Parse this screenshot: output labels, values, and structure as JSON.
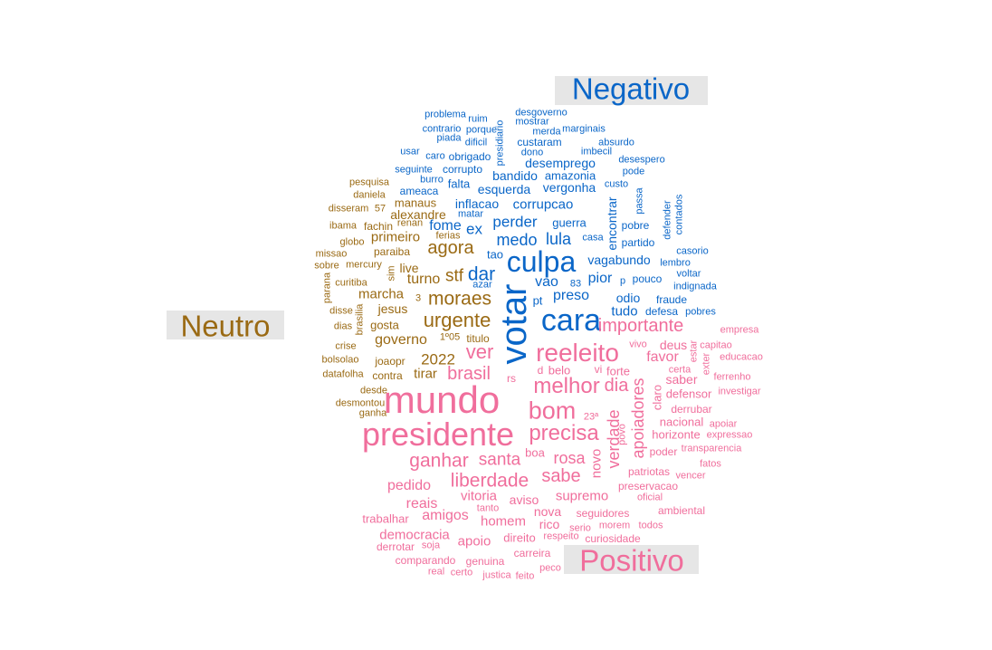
{
  "chart_data": {
    "type": "wordcloud",
    "title": "",
    "legend_labels": {
      "negativo": "Negativo",
      "neutro": "Neutro",
      "positivo": "Positivo"
    },
    "colors": {
      "negativo": "#0a66c8",
      "neutro": "#9a6a14",
      "positivo": "#f06e9c"
    },
    "words": [
      {
        "text": "problema",
        "group": "negativo"
      },
      {
        "text": "ruim",
        "group": "negativo"
      },
      {
        "text": "desgoverno",
        "group": "negativo"
      },
      {
        "text": "mostrar",
        "group": "negativo"
      },
      {
        "text": "contrario",
        "group": "negativo"
      },
      {
        "text": "porque",
        "group": "negativo"
      },
      {
        "text": "merda",
        "group": "negativo"
      },
      {
        "text": "marginais",
        "group": "negativo"
      },
      {
        "text": "piada",
        "group": "negativo"
      },
      {
        "text": "dificil",
        "group": "negativo"
      },
      {
        "text": "presidiario",
        "group": "negativo"
      },
      {
        "text": "custaram",
        "group": "negativo"
      },
      {
        "text": "absurdo",
        "group": "negativo"
      },
      {
        "text": "usar",
        "group": "negativo"
      },
      {
        "text": "caro",
        "group": "negativo"
      },
      {
        "text": "obrigado",
        "group": "negativo"
      },
      {
        "text": "dono",
        "group": "negativo"
      },
      {
        "text": "imbecil",
        "group": "negativo"
      },
      {
        "text": "desemprego",
        "group": "negativo"
      },
      {
        "text": "desespero",
        "group": "negativo"
      },
      {
        "text": "seguinte",
        "group": "negativo"
      },
      {
        "text": "corrupto",
        "group": "negativo"
      },
      {
        "text": "amazonia",
        "group": "negativo"
      },
      {
        "text": "pode",
        "group": "negativo"
      },
      {
        "text": "burro",
        "group": "negativo"
      },
      {
        "text": "falta",
        "group": "negativo"
      },
      {
        "text": "bandido",
        "group": "negativo"
      },
      {
        "text": "custo",
        "group": "negativo"
      },
      {
        "text": "ameaca",
        "group": "negativo"
      },
      {
        "text": "esquerda",
        "group": "negativo"
      },
      {
        "text": "vergonha",
        "group": "negativo"
      },
      {
        "text": "passa",
        "group": "negativo"
      },
      {
        "text": "contados",
        "group": "negativo"
      },
      {
        "text": "inflacao",
        "group": "negativo"
      },
      {
        "text": "corrupcao",
        "group": "negativo"
      },
      {
        "text": "defender",
        "group": "negativo"
      },
      {
        "text": "matar",
        "group": "negativo"
      },
      {
        "text": "encontrar",
        "group": "negativo"
      },
      {
        "text": "fome",
        "group": "negativo"
      },
      {
        "text": "perder",
        "group": "negativo"
      },
      {
        "text": "guerra",
        "group": "negativo"
      },
      {
        "text": "pobre",
        "group": "negativo"
      },
      {
        "text": "ex",
        "group": "negativo"
      },
      {
        "text": "medo",
        "group": "negativo"
      },
      {
        "text": "lula",
        "group": "negativo"
      },
      {
        "text": "casa",
        "group": "negativo"
      },
      {
        "text": "partido",
        "group": "negativo"
      },
      {
        "text": "tao",
        "group": "negativo"
      },
      {
        "text": "casorio",
        "group": "negativo"
      },
      {
        "text": "culpa",
        "group": "negativo"
      },
      {
        "text": "vagabundo",
        "group": "negativo"
      },
      {
        "text": "lembro",
        "group": "negativo"
      },
      {
        "text": "dar",
        "group": "negativo"
      },
      {
        "text": "azar",
        "group": "negativo"
      },
      {
        "text": "pior",
        "group": "negativo"
      },
      {
        "text": "p",
        "group": "negativo"
      },
      {
        "text": "pouco",
        "group": "negativo"
      },
      {
        "text": "voltar",
        "group": "negativo"
      },
      {
        "text": "vao",
        "group": "negativo"
      },
      {
        "text": "83",
        "group": "negativo"
      },
      {
        "text": "indignada",
        "group": "negativo"
      },
      {
        "text": "votar",
        "group": "negativo"
      },
      {
        "text": "preso",
        "group": "negativo"
      },
      {
        "text": "odio",
        "group": "negativo"
      },
      {
        "text": "fraude",
        "group": "negativo"
      },
      {
        "text": "pt",
        "group": "negativo"
      },
      {
        "text": "tudo",
        "group": "negativo"
      },
      {
        "text": "defesa",
        "group": "negativo"
      },
      {
        "text": "pobres",
        "group": "negativo"
      },
      {
        "text": "cara",
        "group": "negativo"
      },
      {
        "text": "pesquisa",
        "group": "neutro"
      },
      {
        "text": "daniela",
        "group": "neutro"
      },
      {
        "text": "disseram",
        "group": "neutro"
      },
      {
        "text": "57",
        "group": "neutro"
      },
      {
        "text": "manaus",
        "group": "neutro"
      },
      {
        "text": "alexandre",
        "group": "neutro"
      },
      {
        "text": "ibama",
        "group": "neutro"
      },
      {
        "text": "fachin",
        "group": "neutro"
      },
      {
        "text": "renan",
        "group": "neutro"
      },
      {
        "text": "ferias",
        "group": "neutro"
      },
      {
        "text": "globo",
        "group": "neutro"
      },
      {
        "text": "primeiro",
        "group": "neutro"
      },
      {
        "text": "agora",
        "group": "neutro"
      },
      {
        "text": "missao",
        "group": "neutro"
      },
      {
        "text": "paraiba",
        "group": "neutro"
      },
      {
        "text": "sobre",
        "group": "neutro"
      },
      {
        "text": "mercury",
        "group": "neutro"
      },
      {
        "text": "sim",
        "group": "neutro"
      },
      {
        "text": "live",
        "group": "neutro"
      },
      {
        "text": "stf",
        "group": "neutro"
      },
      {
        "text": "turno",
        "group": "neutro"
      },
      {
        "text": "parana",
        "group": "neutro"
      },
      {
        "text": "curitiba",
        "group": "neutro"
      },
      {
        "text": "marcha",
        "group": "neutro"
      },
      {
        "text": "3",
        "group": "neutro"
      },
      {
        "text": "moraes",
        "group": "neutro"
      },
      {
        "text": "brasilia",
        "group": "neutro"
      },
      {
        "text": "jesus",
        "group": "neutro"
      },
      {
        "text": "disse",
        "group": "neutro"
      },
      {
        "text": "urgente",
        "group": "neutro"
      },
      {
        "text": "dias",
        "group": "neutro"
      },
      {
        "text": "gosta",
        "group": "neutro"
      },
      {
        "text": "governo",
        "group": "neutro"
      },
      {
        "text": "1º05",
        "group": "neutro"
      },
      {
        "text": "titulo",
        "group": "neutro"
      },
      {
        "text": "crise",
        "group": "neutro"
      },
      {
        "text": "bolsolao",
        "group": "neutro"
      },
      {
        "text": "joaopr",
        "group": "neutro"
      },
      {
        "text": "2022",
        "group": "neutro"
      },
      {
        "text": "datafolha",
        "group": "neutro"
      },
      {
        "text": "contra",
        "group": "neutro"
      },
      {
        "text": "tirar",
        "group": "neutro"
      },
      {
        "text": "desde",
        "group": "neutro"
      },
      {
        "text": "desmontou",
        "group": "neutro"
      },
      {
        "text": "ganha",
        "group": "neutro"
      },
      {
        "text": "ver",
        "group": "positivo"
      },
      {
        "text": "reeleito",
        "group": "positivo"
      },
      {
        "text": "importante",
        "group": "positivo"
      },
      {
        "text": "empresa",
        "group": "positivo"
      },
      {
        "text": "vivo",
        "group": "positivo"
      },
      {
        "text": "deus",
        "group": "positivo"
      },
      {
        "text": "estar",
        "group": "positivo"
      },
      {
        "text": "capitao",
        "group": "positivo"
      },
      {
        "text": "favor",
        "group": "positivo"
      },
      {
        "text": "educacao",
        "group": "positivo"
      },
      {
        "text": "brasil",
        "group": "positivo"
      },
      {
        "text": "rs",
        "group": "positivo"
      },
      {
        "text": "d",
        "group": "positivo"
      },
      {
        "text": "belo",
        "group": "positivo"
      },
      {
        "text": "vi",
        "group": "positivo"
      },
      {
        "text": "forte",
        "group": "positivo"
      },
      {
        "text": "certa",
        "group": "positivo"
      },
      {
        "text": "exter",
        "group": "positivo"
      },
      {
        "text": "saber",
        "group": "positivo"
      },
      {
        "text": "ferrenho",
        "group": "positivo"
      },
      {
        "text": "mundo",
        "group": "positivo"
      },
      {
        "text": "melhor",
        "group": "positivo"
      },
      {
        "text": "dia",
        "group": "positivo"
      },
      {
        "text": "apoiadores",
        "group": "positivo"
      },
      {
        "text": "claro",
        "group": "positivo"
      },
      {
        "text": "defensor",
        "group": "positivo"
      },
      {
        "text": "investigar",
        "group": "positivo"
      },
      {
        "text": "bom",
        "group": "positivo"
      },
      {
        "text": "derrubar",
        "group": "positivo"
      },
      {
        "text": "presidente",
        "group": "positivo"
      },
      {
        "text": "precisa",
        "group": "positivo"
      },
      {
        "text": "23ª",
        "group": "positivo"
      },
      {
        "text": "nacional",
        "group": "positivo"
      },
      {
        "text": "apoiar",
        "group": "positivo"
      },
      {
        "text": "verdade",
        "group": "positivo"
      },
      {
        "text": "povo",
        "group": "positivo"
      },
      {
        "text": "horizonte",
        "group": "positivo"
      },
      {
        "text": "expressao",
        "group": "positivo"
      },
      {
        "text": "poder",
        "group": "positivo"
      },
      {
        "text": "transparencia",
        "group": "positivo"
      },
      {
        "text": "ganhar",
        "group": "positivo"
      },
      {
        "text": "santa",
        "group": "positivo"
      },
      {
        "text": "boa",
        "group": "positivo"
      },
      {
        "text": "rosa",
        "group": "positivo"
      },
      {
        "text": "novo",
        "group": "positivo"
      },
      {
        "text": "fatos",
        "group": "positivo"
      },
      {
        "text": "liberdade",
        "group": "positivo"
      },
      {
        "text": "sabe",
        "group": "positivo"
      },
      {
        "text": "patriotas",
        "group": "positivo"
      },
      {
        "text": "vencer",
        "group": "positivo"
      },
      {
        "text": "pedido",
        "group": "positivo"
      },
      {
        "text": "preservacao",
        "group": "positivo"
      },
      {
        "text": "vitoria",
        "group": "positivo"
      },
      {
        "text": "aviso",
        "group": "positivo"
      },
      {
        "text": "supremo",
        "group": "positivo"
      },
      {
        "text": "oficial",
        "group": "positivo"
      },
      {
        "text": "reais",
        "group": "positivo"
      },
      {
        "text": "tanto",
        "group": "positivo"
      },
      {
        "text": "nova",
        "group": "positivo"
      },
      {
        "text": "seguidores",
        "group": "positivo"
      },
      {
        "text": "ambiental",
        "group": "positivo"
      },
      {
        "text": "amigos",
        "group": "positivo"
      },
      {
        "text": "trabalhar",
        "group": "positivo"
      },
      {
        "text": "homem",
        "group": "positivo"
      },
      {
        "text": "rico",
        "group": "positivo"
      },
      {
        "text": "serio",
        "group": "positivo"
      },
      {
        "text": "morem",
        "group": "positivo"
      },
      {
        "text": "todos",
        "group": "positivo"
      },
      {
        "text": "democracia",
        "group": "positivo"
      },
      {
        "text": "apoio",
        "group": "positivo"
      },
      {
        "text": "direito",
        "group": "positivo"
      },
      {
        "text": "respeito",
        "group": "positivo"
      },
      {
        "text": "curiosidade",
        "group": "positivo"
      },
      {
        "text": "derrotar",
        "group": "positivo"
      },
      {
        "text": "soja",
        "group": "positivo"
      },
      {
        "text": "carreira",
        "group": "positivo"
      },
      {
        "text": "comparando",
        "group": "positivo"
      },
      {
        "text": "genuina",
        "group": "positivo"
      },
      {
        "text": "real",
        "group": "positivo"
      },
      {
        "text": "certo",
        "group": "positivo"
      },
      {
        "text": "justica",
        "group": "positivo"
      },
      {
        "text": "feito",
        "group": "positivo"
      },
      {
        "text": "peco",
        "group": "positivo"
      }
    ]
  }
}
